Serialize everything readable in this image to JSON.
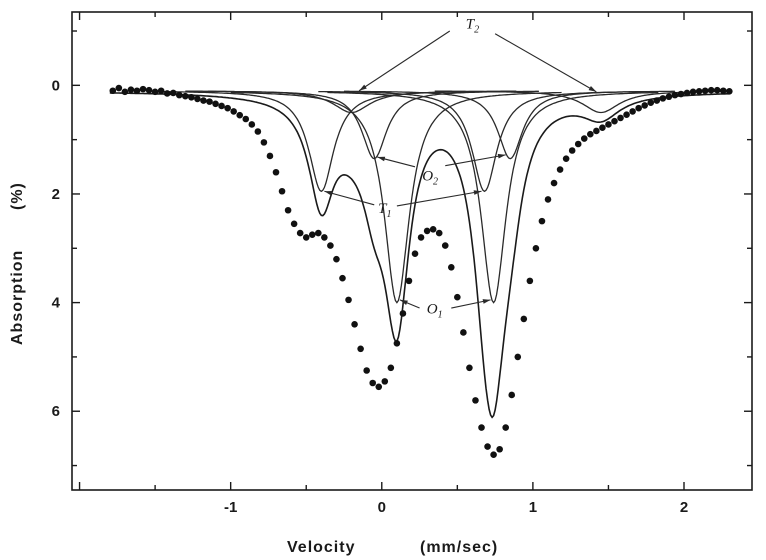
{
  "chart_data": {
    "type": "line",
    "title": "",
    "xlabel": "Velocity",
    "xlabel_unit": "(mm/sec)",
    "ylabel": "Absorption",
    "ylabel_unit": "(%)",
    "xlim": [
      -2.05,
      2.45
    ],
    "ylim": [
      7.45,
      -1.35
    ],
    "y_inverted": true,
    "x_ticks": [
      -1,
      0,
      1,
      2
    ],
    "y_ticks": [
      0,
      2,
      4,
      6
    ],
    "x_tick_labels": [
      "-1",
      "0",
      "1",
      "2"
    ],
    "y_tick_labels": [
      "0",
      "2",
      "4",
      "6"
    ],
    "grid": false,
    "baseline": 0.1,
    "components": [
      {
        "label": "T1",
        "type": "lorentzian",
        "center": -0.4,
        "depth": 1.85,
        "hwhm": 0.1
      },
      {
        "label": "T1",
        "type": "lorentzian",
        "center": 0.68,
        "depth": 1.85,
        "hwhm": 0.1
      },
      {
        "label": "O1",
        "type": "lorentzian",
        "center": 0.1,
        "depth": 3.9,
        "hwhm": 0.1
      },
      {
        "label": "O1",
        "type": "lorentzian",
        "center": 0.74,
        "depth": 3.9,
        "hwhm": 0.1
      },
      {
        "label": "O2",
        "type": "lorentzian",
        "center": -0.05,
        "depth": 1.25,
        "hwhm": 0.1
      },
      {
        "label": "O2",
        "type": "lorentzian",
        "center": 0.85,
        "depth": 1.25,
        "hwhm": 0.1
      },
      {
        "label": "T2",
        "type": "lorentzian",
        "center": -0.2,
        "depth": 0.4,
        "hwhm": 0.15
      },
      {
        "label": "T2",
        "type": "lorentzian",
        "center": 1.45,
        "depth": 0.4,
        "hwhm": 0.15
      }
    ],
    "points": {
      "x": [
        -1.78,
        -1.74,
        -1.7,
        -1.66,
        -1.62,
        -1.58,
        -1.54,
        -1.5,
        -1.46,
        -1.42,
        -1.38,
        -1.34,
        -1.3,
        -1.26,
        -1.22,
        -1.18,
        -1.14,
        -1.1,
        -1.06,
        -1.02,
        -0.98,
        -0.94,
        -0.9,
        -0.86,
        -0.82,
        -0.78,
        -0.74,
        -0.7,
        -0.66,
        -0.62,
        -0.58,
        -0.54,
        -0.5,
        -0.46,
        -0.42,
        -0.38,
        -0.34,
        -0.3,
        -0.26,
        -0.22,
        -0.18,
        -0.14,
        -0.1,
        -0.06,
        -0.02,
        0.02,
        0.06,
        0.1,
        0.14,
        0.18,
        0.22,
        0.26,
        0.3,
        0.34,
        0.38,
        0.42,
        0.46,
        0.5,
        0.54,
        0.58,
        0.62,
        0.66,
        0.7,
        0.74,
        0.78,
        0.82,
        0.86,
        0.9,
        0.94,
        0.98,
        1.02,
        1.06,
        1.1,
        1.14,
        1.18,
        1.22,
        1.26,
        1.3,
        1.34,
        1.38,
        1.42,
        1.46,
        1.5,
        1.54,
        1.58,
        1.62,
        1.66,
        1.7,
        1.74,
        1.78,
        1.82,
        1.86,
        1.9,
        1.94,
        1.98,
        2.02,
        2.06,
        2.1,
        2.14,
        2.18,
        2.22,
        2.26,
        2.3
      ],
      "y": [
        0.1,
        0.05,
        0.12,
        0.08,
        0.1,
        0.07,
        0.09,
        0.12,
        0.1,
        0.15,
        0.14,
        0.18,
        0.2,
        0.22,
        0.25,
        0.28,
        0.3,
        0.34,
        0.38,
        0.42,
        0.48,
        0.55,
        0.62,
        0.72,
        0.85,
        1.05,
        1.3,
        1.6,
        1.95,
        2.3,
        2.55,
        2.72,
        2.8,
        2.75,
        2.72,
        2.8,
        2.95,
        3.2,
        3.55,
        3.95,
        4.4,
        4.85,
        5.25,
        5.48,
        5.55,
        5.45,
        5.2,
        4.75,
        4.2,
        3.6,
        3.1,
        2.8,
        2.68,
        2.65,
        2.72,
        2.95,
        3.35,
        3.9,
        4.55,
        5.2,
        5.8,
        6.3,
        6.65,
        6.8,
        6.7,
        6.3,
        5.7,
        5.0,
        4.3,
        3.6,
        3.0,
        2.5,
        2.1,
        1.8,
        1.55,
        1.35,
        1.2,
        1.08,
        0.98,
        0.9,
        0.84,
        0.78,
        0.72,
        0.66,
        0.6,
        0.54,
        0.48,
        0.42,
        0.37,
        0.32,
        0.28,
        0.24,
        0.21,
        0.18,
        0.16,
        0.14,
        0.12,
        0.11,
        0.1,
        0.09,
        0.09,
        0.1,
        0.11
      ]
    },
    "annotations": [
      {
        "text": "T",
        "sub": "2",
        "x": 0.6,
        "y": -1.05
      },
      {
        "text": "O",
        "sub": "2",
        "x": 0.32,
        "y": 1.75
      },
      {
        "text": "T",
        "sub": "1",
        "x": 0.02,
        "y": 2.35
      },
      {
        "text": "O",
        "sub": "1",
        "x": 0.35,
        "y": 4.2
      }
    ]
  }
}
